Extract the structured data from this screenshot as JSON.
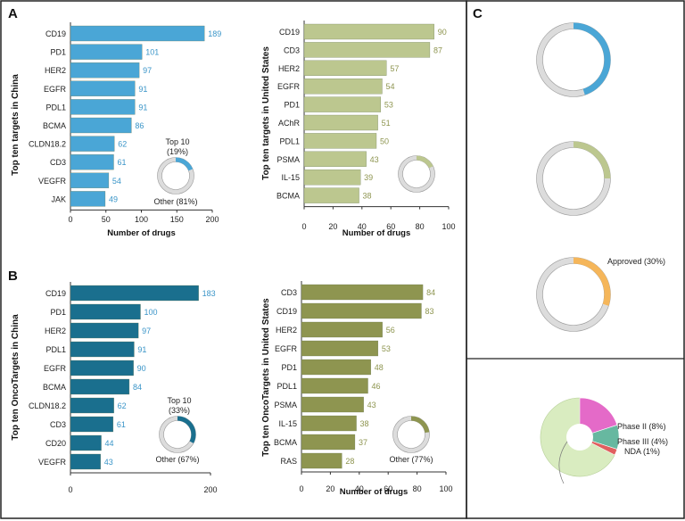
{
  "panel_labels": {
    "a": "A",
    "b": "B",
    "c": "C"
  },
  "colors": {
    "blue_light": "#4aa6d6",
    "blue_dark": "#1a6f8e",
    "olive_light": "#bcc78f",
    "olive_dark": "#8e9550",
    "orange": "#f5b65a",
    "ring_gray": "#dcdcdc",
    "label_blue": "#3a95c8",
    "label_olive": "#8e9550"
  },
  "chart_data": [
    {
      "id": "a_left",
      "type": "bar",
      "orientation": "horizontal",
      "ylabel": "Top ten targets in China",
      "xlabel": "Number of drugs",
      "categories": [
        "CD19",
        "PD1",
        "HER2",
        "EGFR",
        "PDL1",
        "BCMA",
        "CLDN18.2",
        "CD3",
        "VEGFR",
        "JAK"
      ],
      "values": [
        189,
        101,
        97,
        91,
        91,
        86,
        62,
        61,
        54,
        49
      ],
      "xlim": [
        0,
        200
      ],
      "ticks": [
        0,
        50,
        100,
        150,
        200
      ],
      "tick_labels": [
        "0",
        "50",
        "100",
        "150",
        "200"
      ],
      "bar_color": "#4aa6d6",
      "label_color": "#3a95c8",
      "donut": {
        "top_label": "Top 10\n(19%)",
        "bottom_label": "Other (81%)",
        "fraction": 0.19,
        "color": "#4aa6d6"
      }
    },
    {
      "id": "a_right",
      "type": "bar",
      "orientation": "horizontal",
      "ylabel": "Top ten targets in United States",
      "xlabel": "Number of drugs",
      "categories": [
        "CD19",
        "CD3",
        "HER2",
        "EGFR",
        "PD1",
        "AChR",
        "PDL1",
        "PSMA",
        "IL-15",
        "BCMA"
      ],
      "values": [
        90,
        87,
        57,
        54,
        53,
        51,
        50,
        43,
        39,
        38
      ],
      "xlim": [
        0,
        100
      ],
      "ticks": [
        0,
        20,
        40,
        60,
        80,
        100
      ],
      "tick_labels": [
        "0",
        "20",
        "40",
        "60",
        "80",
        "100"
      ],
      "bar_color": "#bcc78f",
      "label_color": "#8e9550",
      "donut": {
        "top_label": "",
        "bottom_label": "",
        "fraction": 0.18,
        "color": "#bcc78f"
      }
    },
    {
      "id": "b_left",
      "type": "bar",
      "orientation": "horizontal",
      "ylabel": "Top ten OncoTargets in China",
      "xlabel": "",
      "categories": [
        "CD19",
        "PD1",
        "HER2",
        "PDL1",
        "EGFR",
        "BCMA",
        "CLDN18.2",
        "CD3",
        "CD20",
        "VEGFR"
      ],
      "values": [
        183,
        100,
        97,
        91,
        90,
        84,
        62,
        61,
        44,
        43
      ],
      "xlim": [
        0,
        200
      ],
      "ticks": [
        0,
        200
      ],
      "tick_labels": [
        "0",
        "200"
      ],
      "bar_color": "#1a6f8e",
      "label_color": "#3a95c8",
      "donut": {
        "top_label": "Top 10\n(33%)",
        "bottom_label": "Other (67%)",
        "fraction": 0.33,
        "color": "#1a6f8e"
      }
    },
    {
      "id": "b_right",
      "type": "bar",
      "orientation": "horizontal",
      "ylabel": "Top ten OncoTargets in United States",
      "xlabel": "Number of drugs",
      "categories": [
        "CD3",
        "CD19",
        "HER2",
        "EGFR",
        "PD1",
        "PDL1",
        "PSMA",
        "IL-15",
        "BCMA",
        "RAS"
      ],
      "values": [
        84,
        83,
        56,
        53,
        48,
        46,
        43,
        38,
        37,
        28
      ],
      "xlim": [
        0,
        100
      ],
      "ticks": [
        0,
        20,
        40,
        60,
        80,
        100
      ],
      "tick_labels": [
        "0",
        "20",
        "40",
        "60",
        "80",
        "100"
      ],
      "bar_color": "#8e9550",
      "label_color": "#8e9550",
      "donut": {
        "top_label": "",
        "bottom_label": "Other (77%)",
        "fraction": 0.23,
        "color": "#8e9550"
      }
    },
    {
      "id": "c_rings",
      "type": "pie",
      "rings": [
        {
          "fraction": 0.45,
          "color": "#4aa6d6",
          "label": ""
        },
        {
          "fraction": 0.25,
          "color": "#bcc78f",
          "label": ""
        },
        {
          "fraction": 0.3,
          "color": "#f5b65a",
          "label": "Approved (30%)"
        }
      ]
    },
    {
      "id": "c_pie",
      "type": "pie",
      "slices": [
        {
          "label": "Phase II (8%)",
          "value": 8,
          "color": "#e46ac8"
        },
        {
          "label": "Phase III (4%)",
          "value": 4,
          "color": "#67b8a0"
        },
        {
          "label": "NDA (1%)",
          "value": 1,
          "color": "#e15f5f"
        }
      ],
      "other_color": "#d9ecc0"
    }
  ]
}
